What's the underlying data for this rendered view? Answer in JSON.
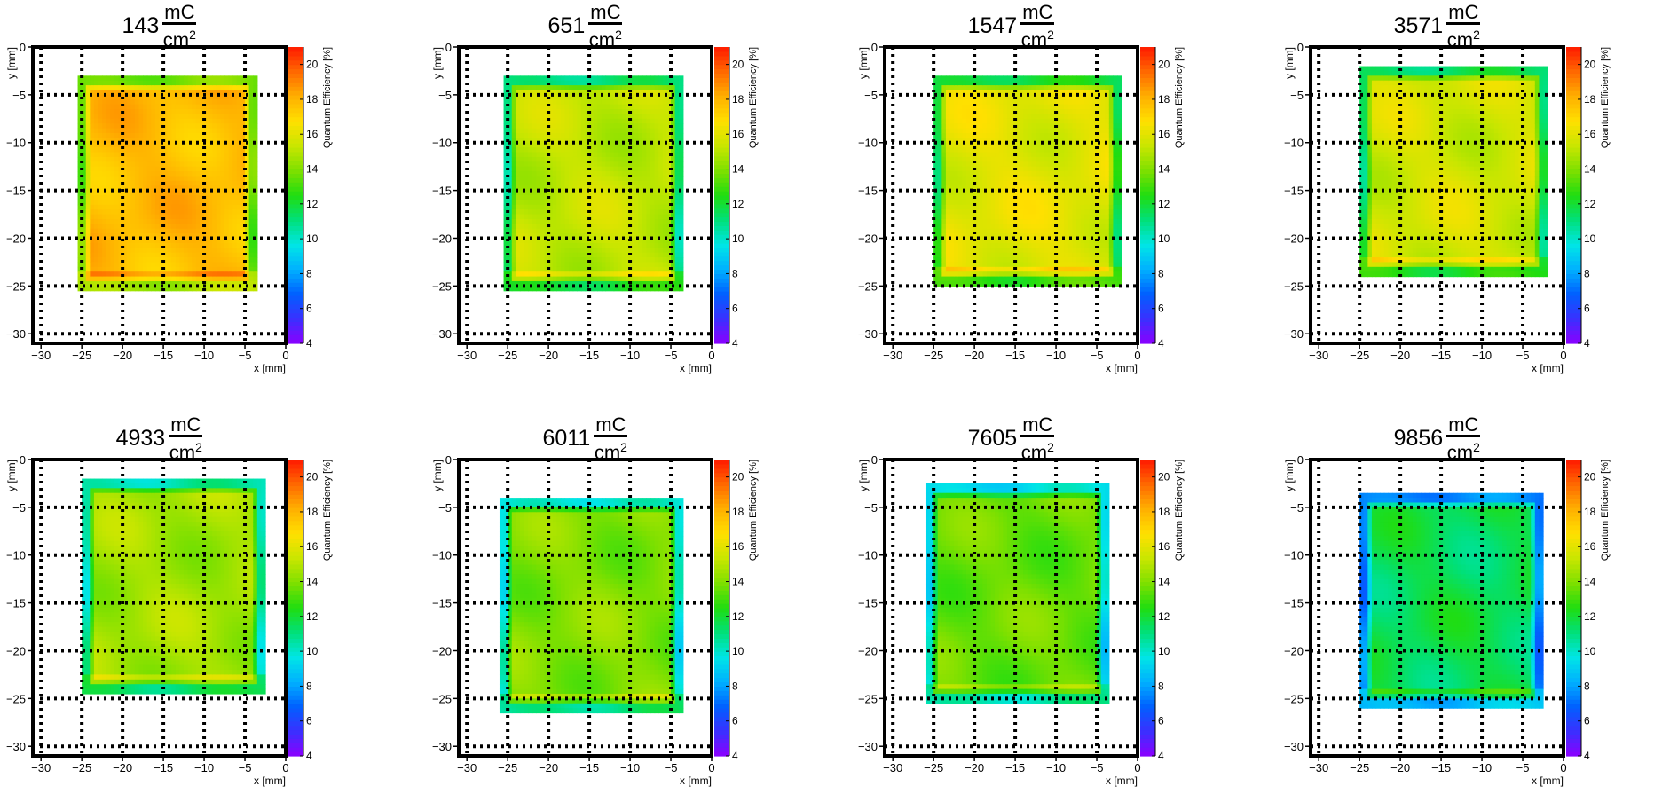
{
  "colors": {
    "frame": "#000000",
    "grid": "#000000",
    "palette": [
      "#8b00ff",
      "#3b2fff",
      "#0060ff",
      "#00b0ff",
      "#00e6e6",
      "#00e07a",
      "#20dd10",
      "#7ee000",
      "#c8e600",
      "#ffe000",
      "#ffb000",
      "#ff6a00",
      "#ff1a00"
    ]
  },
  "axis_labels": {
    "x": "x [mm]",
    "y": "y [mm]",
    "z": "Quantum Efficiency [%]"
  },
  "unit": {
    "numerator": "mC",
    "denominator": "cm",
    "exponent": "2"
  },
  "chart_data": [
    {
      "type": "heatmap",
      "title_value": "143",
      "unit": "mC/cm2",
      "qe_mean": 17.8,
      "xlim": [
        -31,
        0
      ],
      "ylim": [
        -31,
        0
      ],
      "zlim": [
        4,
        21
      ],
      "xticks": [
        -30,
        -25,
        -20,
        -15,
        -10,
        -5,
        0
      ],
      "yticks": [
        0,
        -5,
        -10,
        -15,
        -20,
        -25,
        -30
      ],
      "zticks": [
        4,
        6,
        8,
        10,
        12,
        14,
        16,
        18,
        20
      ],
      "region": {
        "x": [
          -25.5,
          -3.5
        ],
        "y": [
          -25.5,
          -3.0
        ]
      },
      "grid": true
    },
    {
      "type": "heatmap",
      "title_value": "651",
      "unit": "mC/cm2",
      "qe_mean": 15.2,
      "xlim": [
        -31,
        0
      ],
      "ylim": [
        -31,
        0
      ],
      "zlim": [
        4,
        21
      ],
      "xticks": [
        -30,
        -25,
        -20,
        -15,
        -10,
        -5,
        0
      ],
      "yticks": [
        0,
        -5,
        -10,
        -15,
        -20,
        -25,
        -30
      ],
      "zticks": [
        4,
        6,
        8,
        10,
        12,
        14,
        16,
        18,
        20
      ],
      "region": {
        "x": [
          -25.5,
          -3.5
        ],
        "y": [
          -25.5,
          -3.0
        ]
      },
      "grid": true
    },
    {
      "type": "heatmap",
      "title_value": "1547",
      "unit": "mC/cm2",
      "qe_mean": 16.0,
      "xlim": [
        -31,
        0
      ],
      "ylim": [
        -31,
        0
      ],
      "zlim": [
        4,
        21
      ],
      "xticks": [
        -30,
        -25,
        -20,
        -15,
        -10,
        -5,
        0
      ],
      "yticks": [
        0,
        -5,
        -10,
        -15,
        -20,
        -25,
        -30
      ],
      "zticks": [
        4,
        6,
        8,
        10,
        12,
        14,
        16,
        18,
        20
      ],
      "region": {
        "x": [
          -25.0,
          -2.0
        ],
        "y": [
          -25.0,
          -3.0
        ]
      },
      "grid": true
    },
    {
      "type": "heatmap",
      "title_value": "3571",
      "unit": "mC/cm2",
      "qe_mean": 15.6,
      "xlim": [
        -31,
        0
      ],
      "ylim": [
        -31,
        0
      ],
      "zlim": [
        4,
        21
      ],
      "xticks": [
        -30,
        -25,
        -20,
        -15,
        -10,
        -5,
        0
      ],
      "yticks": [
        0,
        -5,
        -10,
        -15,
        -20,
        -25,
        -30
      ],
      "zticks": [
        4,
        6,
        8,
        10,
        12,
        14,
        16,
        18,
        20
      ],
      "region": {
        "x": [
          -25.0,
          -2.0
        ],
        "y": [
          -24.0,
          -2.0
        ]
      },
      "grid": true
    },
    {
      "type": "heatmap",
      "title_value": "4933",
      "unit": "mC/cm2",
      "qe_mean": 14.6,
      "xlim": [
        -31,
        0
      ],
      "ylim": [
        -31,
        0
      ],
      "zlim": [
        4,
        21
      ],
      "xticks": [
        -30,
        -25,
        -20,
        -15,
        -10,
        -5,
        0
      ],
      "yticks": [
        0,
        -5,
        -10,
        -15,
        -20,
        -25,
        -30
      ],
      "zticks": [
        4,
        6,
        8,
        10,
        12,
        14,
        16,
        18,
        20
      ],
      "region": {
        "x": [
          -25.0,
          -2.5
        ],
        "y": [
          -24.5,
          -2.0
        ]
      },
      "grid": true
    },
    {
      "type": "heatmap",
      "title_value": "6011",
      "unit": "mC/cm2",
      "qe_mean": 14.0,
      "xlim": [
        -31,
        0
      ],
      "ylim": [
        -31,
        0
      ],
      "zlim": [
        4,
        21
      ],
      "xticks": [
        -30,
        -25,
        -20,
        -15,
        -10,
        -5,
        0
      ],
      "yticks": [
        0,
        -5,
        -10,
        -15,
        -20,
        -25,
        -30
      ],
      "zticks": [
        4,
        6,
        8,
        10,
        12,
        14,
        16,
        18,
        20
      ],
      "region": {
        "x": [
          -26.0,
          -3.5
        ],
        "y": [
          -26.5,
          -4.0
        ]
      },
      "grid": true
    },
    {
      "type": "heatmap",
      "title_value": "7605",
      "unit": "mC/cm2",
      "qe_mean": 13.6,
      "xlim": [
        -31,
        0
      ],
      "ylim": [
        -31,
        0
      ],
      "zlim": [
        4,
        21
      ],
      "xticks": [
        -30,
        -25,
        -20,
        -15,
        -10,
        -5,
        0
      ],
      "yticks": [
        0,
        -5,
        -10,
        -15,
        -20,
        -25,
        -30
      ],
      "zticks": [
        4,
        6,
        8,
        10,
        12,
        14,
        16,
        18,
        20
      ],
      "region": {
        "x": [
          -26.0,
          -3.5
        ],
        "y": [
          -25.5,
          -2.5
        ]
      },
      "grid": true
    },
    {
      "type": "heatmap",
      "title_value": "9856",
      "unit": "mC/cm2",
      "qe_mean": 11.6,
      "xlim": [
        -31,
        0
      ],
      "ylim": [
        -31,
        0
      ],
      "zlim": [
        4,
        21
      ],
      "xticks": [
        -30,
        -25,
        -20,
        -15,
        -10,
        -5,
        0
      ],
      "yticks": [
        0,
        -5,
        -10,
        -15,
        -20,
        -25,
        -30
      ],
      "zticks": [
        4,
        6,
        8,
        10,
        12,
        14,
        16,
        18,
        20
      ],
      "region": {
        "x": [
          -25.0,
          -2.5
        ],
        "y": [
          -26.0,
          -3.5
        ]
      },
      "grid": true
    }
  ]
}
